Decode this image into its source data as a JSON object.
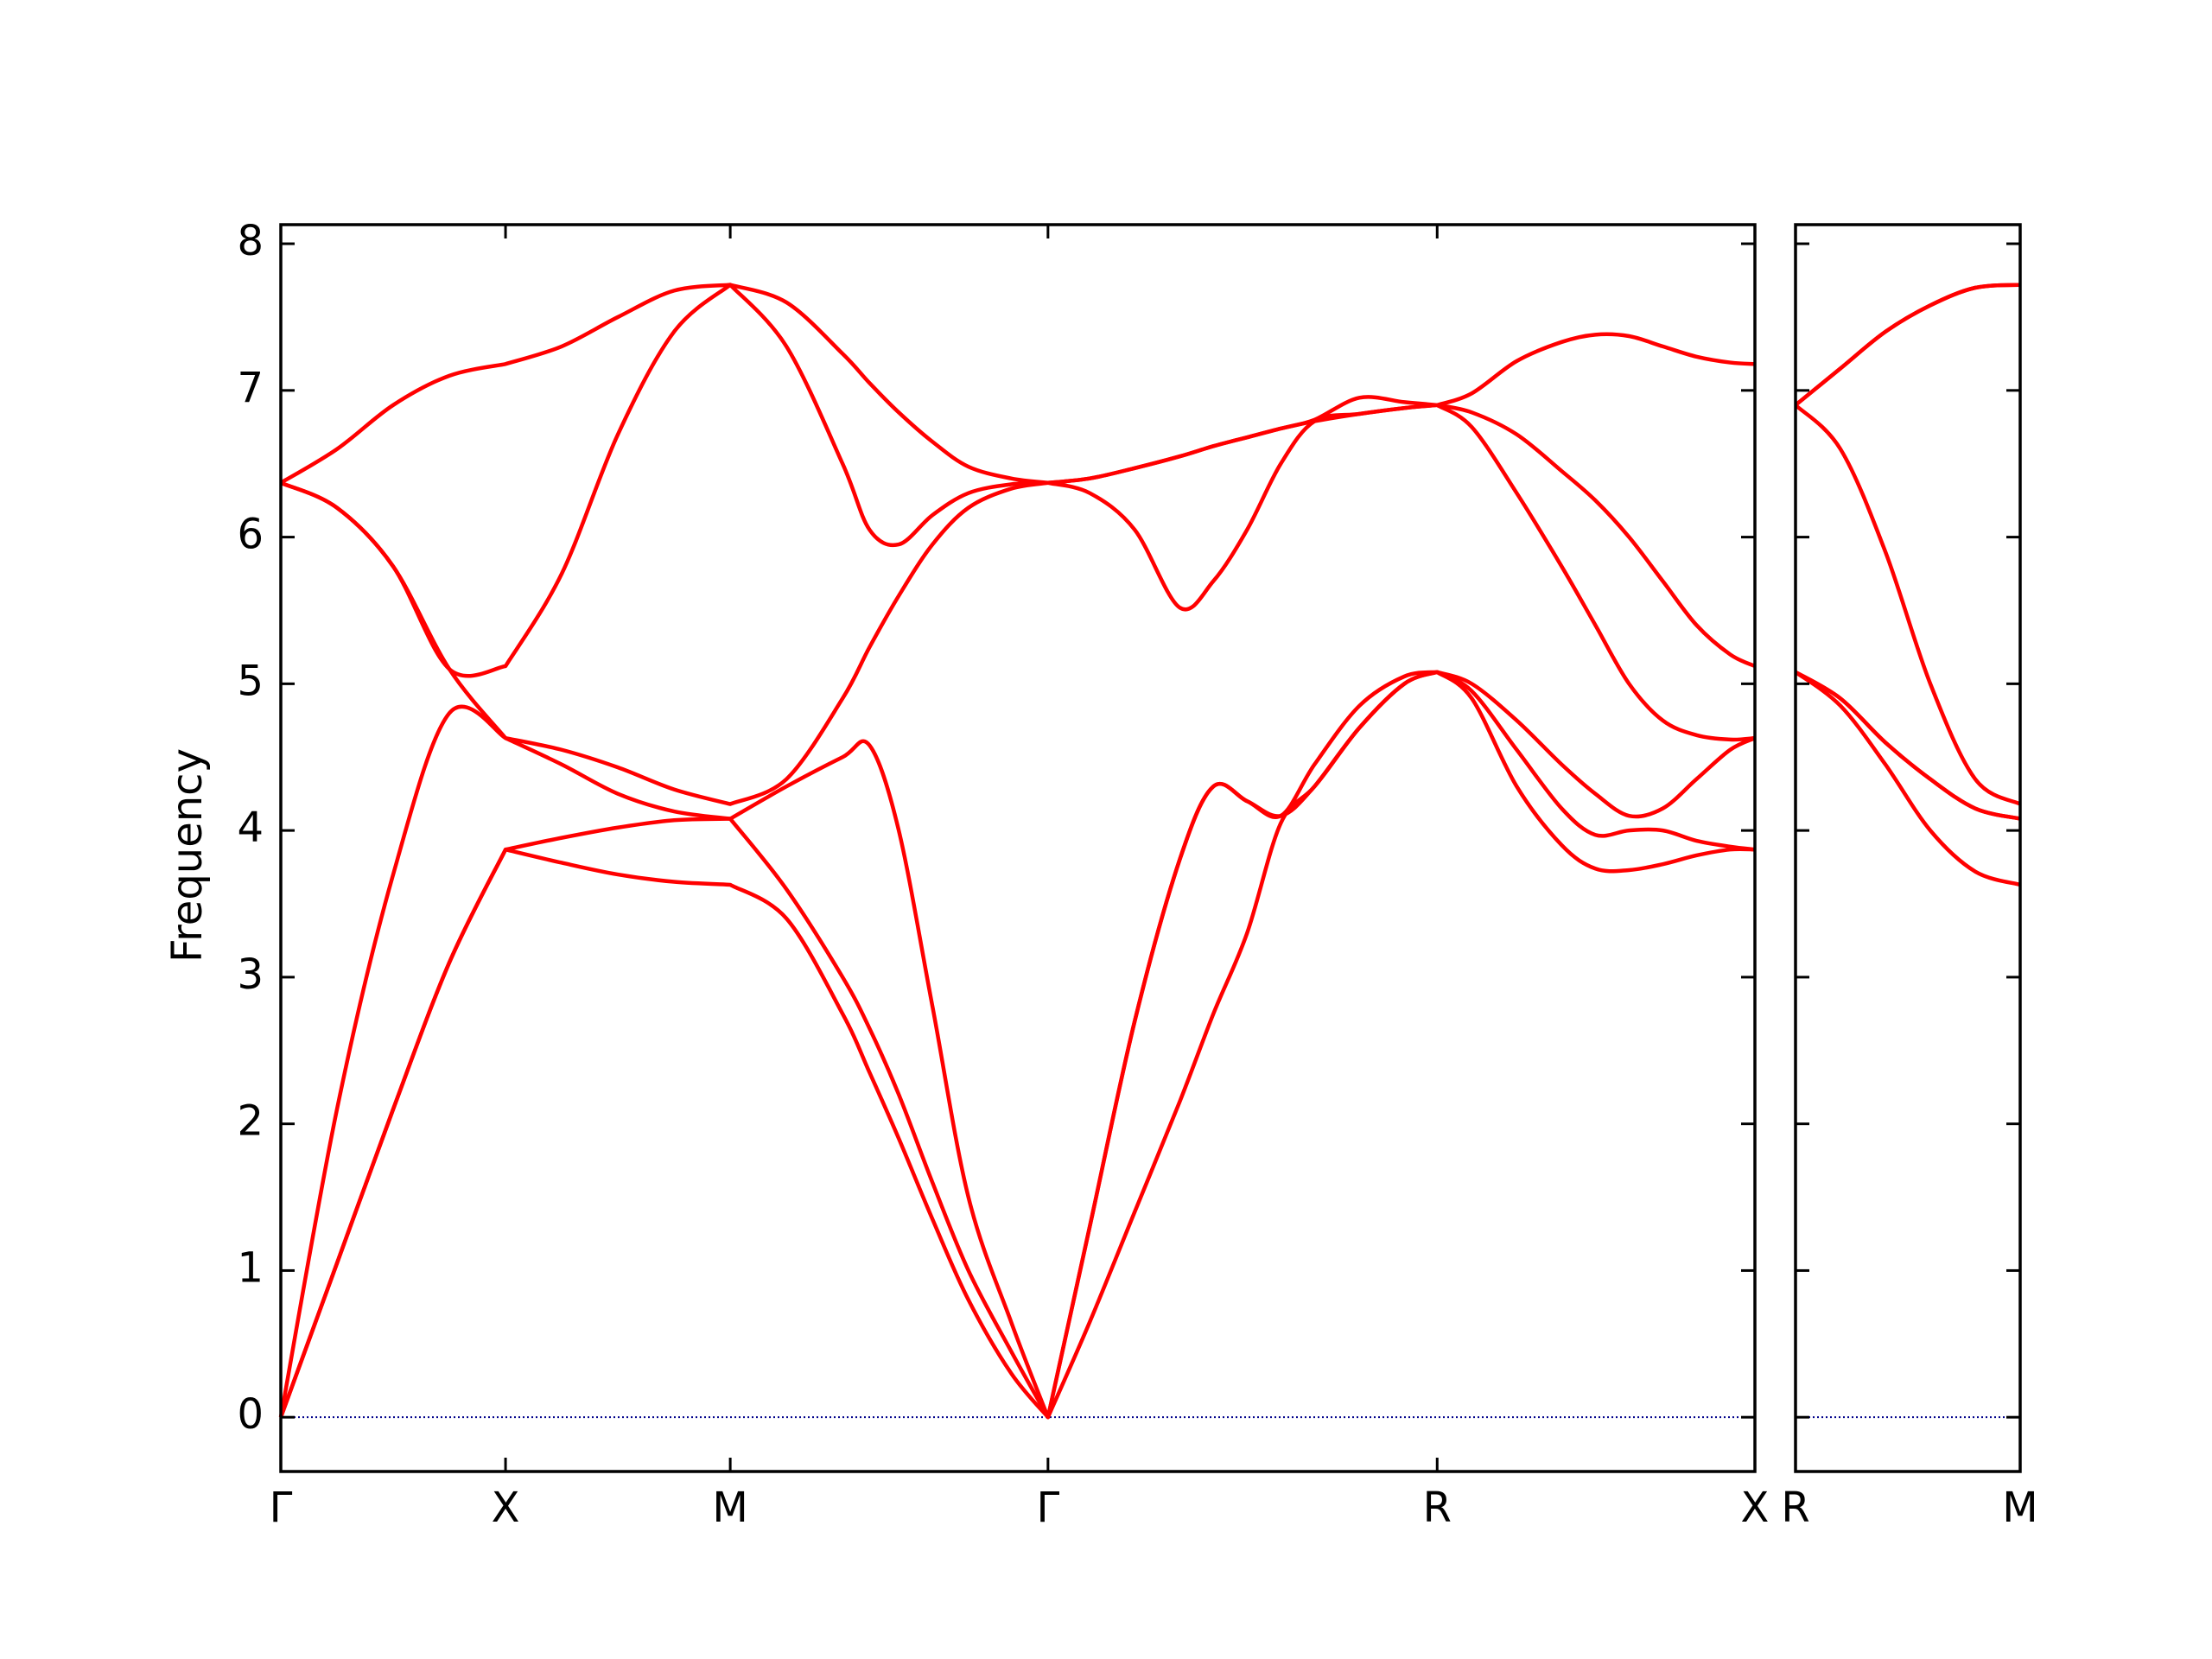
{
  "chart_data": [
    {
      "type": "line",
      "ylabel": "Frequency",
      "x": [
        0,
        0.25,
        0.5,
        0.75,
        1,
        1.25,
        1.5,
        1.75,
        2,
        2.25,
        2.5,
        2.62,
        2.75,
        2.9,
        3.06,
        3.25,
        3.414,
        3.6,
        3.8,
        4.0,
        4.15,
        4.3,
        4.45,
        4.6,
        4.8,
        5.0,
        5.146,
        5.3,
        5.5,
        5.7,
        5.85,
        6.0,
        6.15,
        6.3,
        6.45,
        6.56
      ],
      "series": [
        {
          "color": "#ff0000",
          "values": [
            0,
            1.05,
            2.1,
            3.1,
            3.87,
            3.78,
            3.7,
            3.65,
            3.63,
            3.4,
            2.75,
            2.35,
            1.9,
            1.35,
            0.8,
            0.3,
            0,
            0.65,
            1.4,
            2.15,
            2.75,
            3.3,
            4.05,
            4.3,
            4.7,
            5.0,
            5.08,
            4.9,
            4.3,
            3.9,
            3.74,
            3.73,
            3.77,
            3.83,
            3.87,
            3.87
          ]
        },
        {
          "color": "#ff0000",
          "values": [
            0,
            1.05,
            2.1,
            3.1,
            3.87,
            3.95,
            4.02,
            4.07,
            4.08,
            3.6,
            3.0,
            2.65,
            2.2,
            1.6,
            1.0,
            0.45,
            0,
            1.3,
            2.7,
            3.8,
            4.3,
            4.2,
            4.1,
            4.3,
            4.7,
            5.0,
            5.08,
            4.95,
            4.55,
            4.15,
            3.97,
            4.0,
            4.0,
            3.93,
            3.89,
            3.87
          ]
        },
        {
          "color": "#ff0000",
          "values": [
            0,
            2.1,
            3.7,
            4.8,
            4.63,
            4.45,
            4.25,
            4.13,
            4.08,
            4.3,
            4.5,
            4.58,
            4.0,
            2.8,
            1.5,
            0.65,
            0,
            1.3,
            2.7,
            3.8,
            4.3,
            4.2,
            4.1,
            4.45,
            4.85,
            5.05,
            5.08,
            5.0,
            4.75,
            4.45,
            4.25,
            4.1,
            4.15,
            4.35,
            4.55,
            4.63
          ]
        },
        {
          "color": "#ff0000",
          "values": [
            6.37,
            6.2,
            5.8,
            5.1,
            4.63,
            4.55,
            4.43,
            4.28,
            4.18,
            4.35,
            4.9,
            5.25,
            5.6,
            5.95,
            6.2,
            6.33,
            6.37,
            6.3,
            6.05,
            5.52,
            5.7,
            6.05,
            6.5,
            6.79,
            6.84,
            6.88,
            6.9,
            6.75,
            6.3,
            5.8,
            5.4,
            5.0,
            4.75,
            4.65,
            4.62,
            4.63
          ]
        },
        {
          "color": "#ff0000",
          "values": [
            6.37,
            6.2,
            5.8,
            5.1,
            5.12,
            5.75,
            6.7,
            7.4,
            7.72,
            7.3,
            6.5,
            6.05,
            5.95,
            6.15,
            6.3,
            6.36,
            6.37,
            6.4,
            6.47,
            6.55,
            6.62,
            6.68,
            6.74,
            6.79,
            6.84,
            6.88,
            6.9,
            6.85,
            6.7,
            6.45,
            6.25,
            6.0,
            5.7,
            5.4,
            5.2,
            5.12
          ]
        },
        {
          "color": "#ff0000",
          "values": [
            6.37,
            6.6,
            6.9,
            7.1,
            7.18,
            7.3,
            7.5,
            7.68,
            7.72,
            7.6,
            7.25,
            7.05,
            6.85,
            6.65,
            6.48,
            6.4,
            6.37,
            6.4,
            6.47,
            6.55,
            6.62,
            6.68,
            6.74,
            6.8,
            6.95,
            6.92,
            6.9,
            6.98,
            7.2,
            7.33,
            7.38,
            7.37,
            7.3,
            7.23,
            7.19,
            7.18
          ]
        }
      ],
      "xlim": [
        0,
        6.56
      ],
      "xticks": [
        {
          "value": 0,
          "label": "Γ"
        },
        {
          "value": 1,
          "label": "X"
        },
        {
          "value": 2,
          "label": "M"
        },
        {
          "value": 3.414,
          "label": "Γ"
        },
        {
          "value": 5.146,
          "label": "R"
        },
        {
          "value": 6.56,
          "label": "X"
        }
      ],
      "ylim": [
        -0.37,
        8.13
      ],
      "yticks": [
        0,
        1,
        2,
        3,
        4,
        5,
        6,
        7,
        8
      ],
      "ytick_labels": true,
      "hline": 0,
      "hline_color": "#00008b"
    },
    {
      "type": "line",
      "x": [
        0,
        0.2,
        0.4,
        0.6,
        0.8,
        1
      ],
      "series": [
        {
          "color": "#ff0000",
          "values": [
            5.08,
            4.85,
            4.45,
            4.0,
            3.72,
            3.63
          ]
        },
        {
          "color": "#ff0000",
          "values": [
            5.08,
            4.9,
            4.6,
            4.35,
            4.15,
            4.08
          ]
        },
        {
          "color": "#ff0000",
          "values": [
            5.08,
            4.9,
            4.6,
            4.35,
            4.15,
            4.08
          ]
        },
        {
          "color": "#ff0000",
          "values": [
            6.9,
            6.6,
            5.9,
            5.0,
            4.35,
            4.18
          ]
        },
        {
          "color": "#ff0000",
          "values": [
            6.9,
            7.15,
            7.4,
            7.58,
            7.7,
            7.72
          ]
        },
        {
          "color": "#ff0000",
          "values": [
            6.9,
            7.15,
            7.4,
            7.58,
            7.7,
            7.72
          ]
        }
      ],
      "xlim": [
        0,
        1
      ],
      "xticks": [
        {
          "value": 0,
          "label": "R"
        },
        {
          "value": 1,
          "label": "M"
        }
      ],
      "ylim": [
        -0.37,
        8.13
      ],
      "yticks": [
        0,
        1,
        2,
        3,
        4,
        5,
        6,
        7,
        8
      ],
      "ytick_labels": false,
      "hline": 0,
      "hline_color": "#00008b"
    }
  ]
}
